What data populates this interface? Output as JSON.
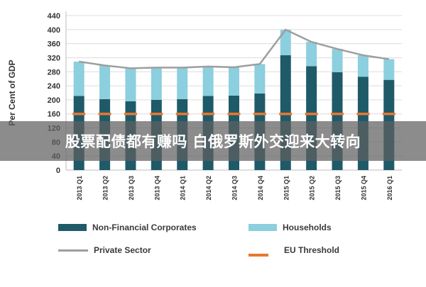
{
  "chart_data": {
    "type": "bar",
    "ylabel": "Per Cent of GDP",
    "ylim": [
      0,
      440
    ],
    "yticks": [
      0,
      40,
      80,
      120,
      160,
      200,
      240,
      280,
      320,
      360,
      400,
      440
    ],
    "grid": true,
    "categories": [
      "2013 Q1",
      "2013 Q2",
      "2013 Q3",
      "2013 Q4",
      "2014 Q1",
      "2014 Q2",
      "2014 Q3",
      "2014 Q4",
      "2015 Q1",
      "2015 Q2",
      "2015 Q3",
      "2015 Q4",
      "2016 Q1"
    ],
    "series": [
      {
        "name": "Non-Financial Corporates",
        "kind": "stacked-bar",
        "color": "#1f5a68",
        "values": [
          211,
          202,
          196,
          200,
          202,
          211,
          212,
          218,
          327,
          296,
          279,
          266,
          257
        ]
      },
      {
        "name": "Households",
        "kind": "stacked-bar",
        "color": "#8ccfde",
        "values": [
          98,
          96,
          94,
          92,
          90,
          84,
          81,
          84,
          73,
          69,
          66,
          61,
          59
        ]
      },
      {
        "name": "Private Sector",
        "kind": "line",
        "color": "#9e9e9e",
        "values": [
          309,
          298,
          290,
          292,
          292,
          295,
          293,
          302,
          400,
          365,
          345,
          327,
          316
        ]
      },
      {
        "name": "EU Threshold",
        "kind": "dashed-line",
        "color": "#e8772e",
        "values": [
          160,
          160,
          160,
          160,
          160,
          160,
          160,
          160,
          160,
          160,
          160,
          160,
          160
        ]
      }
    ],
    "legend_placement": "bottom"
  },
  "banner": {
    "text": "股票配债都有赚吗 白俄罗斯外交迎来大转向"
  }
}
